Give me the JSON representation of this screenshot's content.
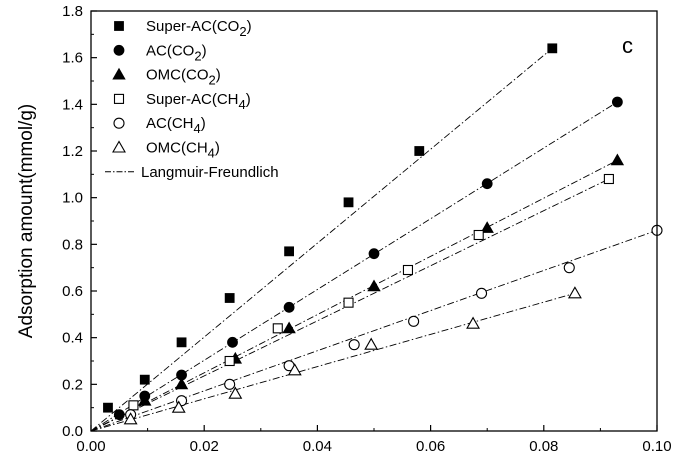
{
  "chart_data": {
    "type": "scatter",
    "title": "",
    "panel_label": "c",
    "xlabel": "",
    "ylabel": "Adsorption amount(mmol/g)",
    "xlim": [
      0,
      0.1
    ],
    "ylim": [
      0,
      1.8
    ],
    "x_ticks": [
      "0.00",
      "0.02",
      "0.04",
      "0.06",
      "0.08",
      "0.10"
    ],
    "y_ticks": [
      "0.0",
      "0.2",
      "0.4",
      "0.6",
      "0.8",
      "1.0",
      "1.2",
      "1.4",
      "1.6",
      "1.8"
    ],
    "grid": false,
    "legend_position": "top-left",
    "series": [
      {
        "name": "Super-AC(CO2)",
        "legend_main": "Super-AC(CO",
        "legend_sub": "2",
        "legend_tail": ")",
        "marker": "square-filled",
        "x": [
          0.003,
          0.0095,
          0.016,
          0.0245,
          0.035,
          0.0455,
          0.058,
          0.0815
        ],
        "y": [
          0.1,
          0.22,
          0.38,
          0.57,
          0.77,
          0.98,
          1.2,
          1.64
        ]
      },
      {
        "name": "AC(CO2)",
        "legend_main": "AC(CO",
        "legend_sub": "2",
        "legend_tail": ")",
        "marker": "circle-filled",
        "x": [
          0.005,
          0.0095,
          0.016,
          0.025,
          0.035,
          0.05,
          0.07,
          0.093
        ],
        "y": [
          0.07,
          0.15,
          0.24,
          0.38,
          0.53,
          0.76,
          1.06,
          1.41
        ]
      },
      {
        "name": "OMC(CO2)",
        "legend_main": "OMC(CO",
        "legend_sub": "2",
        "legend_tail": ")",
        "marker": "triangle-filled",
        "x": [
          0.0095,
          0.016,
          0.0255,
          0.035,
          0.05,
          0.07,
          0.093
        ],
        "y": [
          0.13,
          0.2,
          0.31,
          0.44,
          0.62,
          0.87,
          1.16
        ]
      },
      {
        "name": "Super-AC(CH4)",
        "legend_main": "Super-AC(CH",
        "legend_sub": "4",
        "legend_tail": ")",
        "marker": "square-open",
        "x": [
          0.0075,
          0.0245,
          0.033,
          0.0455,
          0.056,
          0.0685,
          0.0915
        ],
        "y": [
          0.11,
          0.3,
          0.44,
          0.55,
          0.69,
          0.84,
          1.08
        ]
      },
      {
        "name": "AC(CH4)",
        "legend_main": "AC(CH",
        "legend_sub": "4",
        "legend_tail": ")",
        "marker": "circle-open",
        "x": [
          0.007,
          0.016,
          0.0245,
          0.035,
          0.0465,
          0.057,
          0.069,
          0.0845,
          0.1
        ],
        "y": [
          0.07,
          0.13,
          0.2,
          0.28,
          0.37,
          0.47,
          0.59,
          0.7,
          0.86
        ]
      },
      {
        "name": "OMC(CH4)",
        "legend_main": "OMC(CH",
        "legend_sub": "4",
        "legend_tail": ")",
        "marker": "triangle-open",
        "x": [
          0.007,
          0.0155,
          0.0255,
          0.036,
          0.0495,
          0.0675,
          0.0855
        ],
        "y": [
          0.05,
          0.1,
          0.16,
          0.26,
          0.37,
          0.46,
          0.59
        ]
      }
    ],
    "fit": {
      "name": "Langmuir-Freundlich",
      "style": "dash-dot",
      "lines": [
        {
          "series": "Super-AC(CO2)",
          "x": [
            0,
            0.0815
          ],
          "y": [
            0,
            1.64
          ]
        },
        {
          "series": "AC(CO2)",
          "x": [
            0,
            0.093
          ],
          "y": [
            0,
            1.41
          ]
        },
        {
          "series": "OMC(CO2)",
          "x": [
            0,
            0.093
          ],
          "y": [
            0,
            1.16
          ]
        },
        {
          "series": "Super-AC(CH4)",
          "x": [
            0,
            0.0915
          ],
          "y": [
            0,
            1.08
          ]
        },
        {
          "series": "AC(CH4)",
          "x": [
            0,
            0.1
          ],
          "y": [
            0,
            0.86
          ]
        },
        {
          "series": "OMC(CH4)",
          "x": [
            0,
            0.0855
          ],
          "y": [
            0,
            0.59
          ]
        }
      ]
    }
  }
}
